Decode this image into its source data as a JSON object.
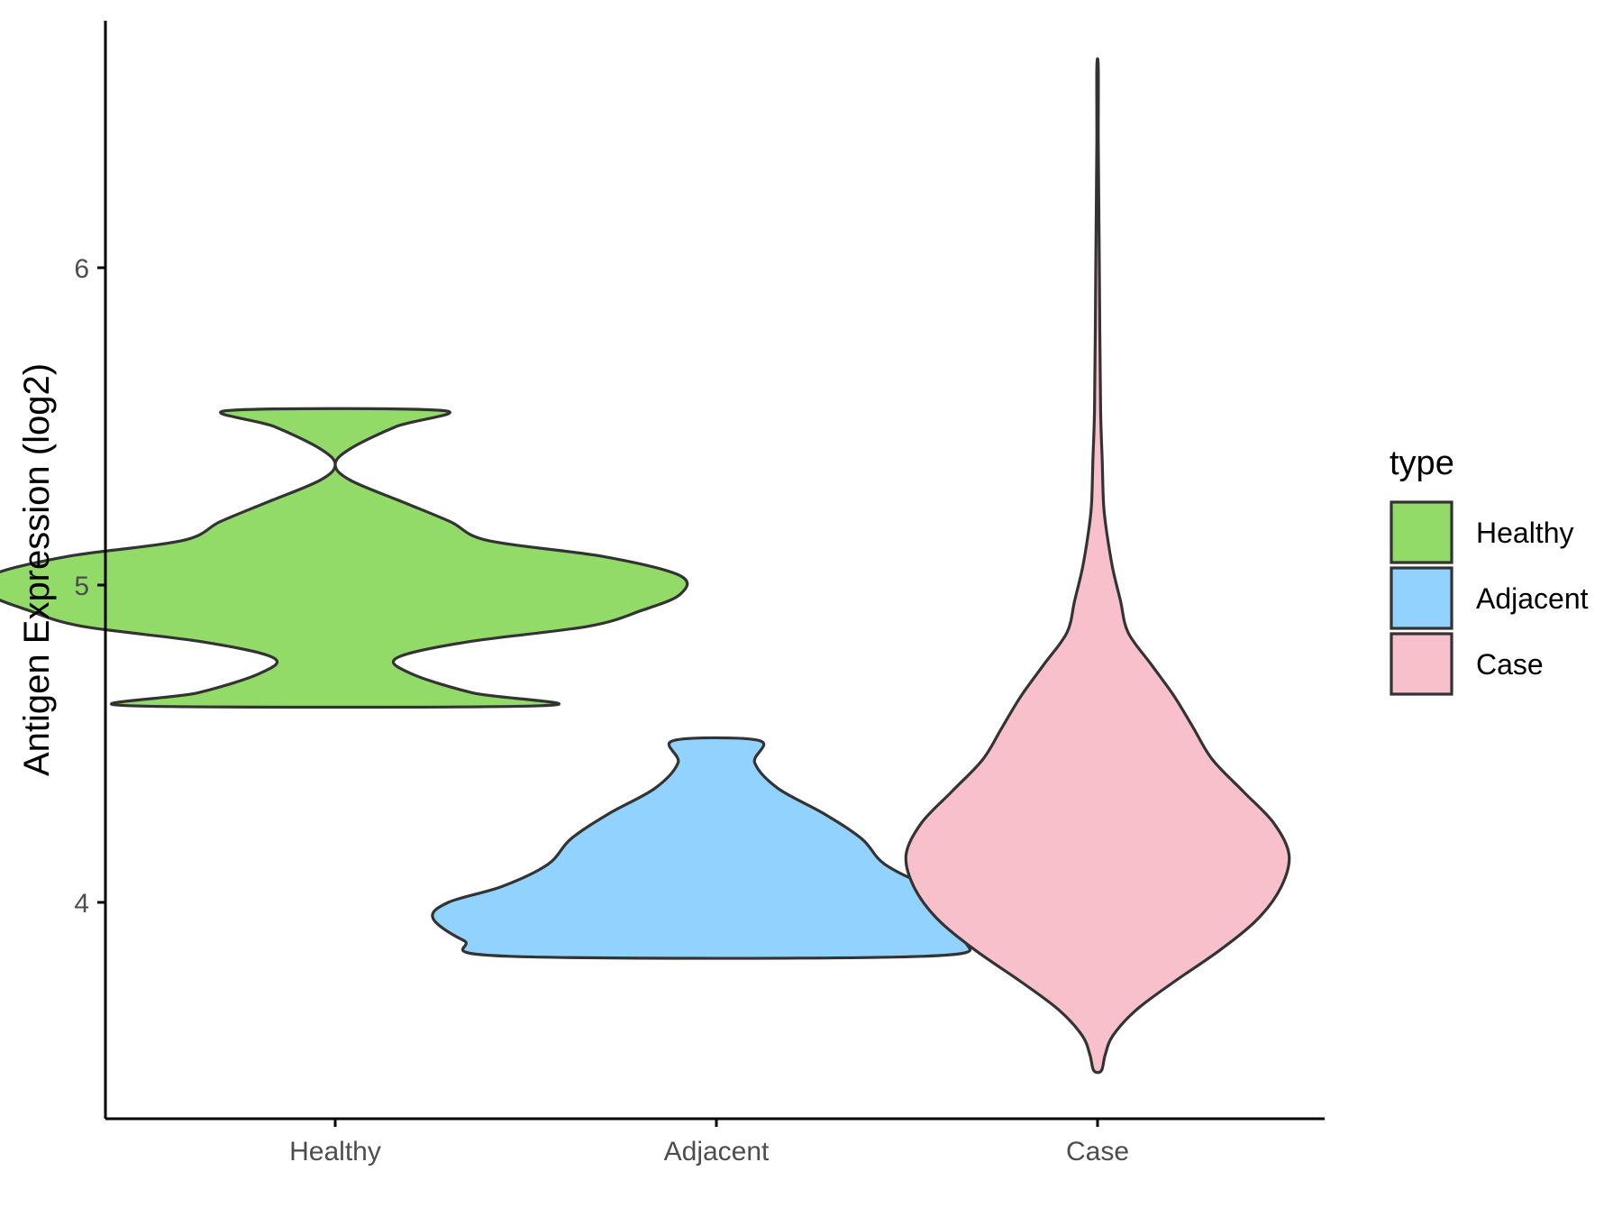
{
  "chart_data": {
    "type": "violin",
    "title": "",
    "xlabel": "",
    "ylabel": "Antigen Expression (log2)",
    "ylim": [
      3.35,
      6.8
    ],
    "yticks": [
      4,
      5,
      6
    ],
    "categories": [
      "Healthy",
      "Adjacent",
      "Case"
    ],
    "grid": false,
    "legend": {
      "title": "type",
      "position": "right",
      "entries": [
        "Healthy",
        "Adjacent",
        "Case"
      ]
    },
    "series": [
      {
        "name": "Healthy",
        "color": "#93DB69",
        "profile": [
          [
            4.62,
            0.27
          ],
          [
            4.66,
            0.18
          ],
          [
            4.72,
            0.1
          ],
          [
            4.77,
            0.08
          ],
          [
            4.82,
            0.17
          ],
          [
            4.87,
            0.33
          ],
          [
            4.92,
            0.4
          ],
          [
            4.97,
            0.45
          ],
          [
            5.03,
            0.45
          ],
          [
            5.09,
            0.35
          ],
          [
            5.14,
            0.2
          ],
          [
            5.2,
            0.15
          ],
          [
            5.26,
            0.09
          ],
          [
            5.33,
            0.02
          ],
          [
            5.38,
            0.0
          ],
          [
            5.43,
            0.02
          ],
          [
            5.5,
            0.08
          ],
          [
            5.55,
            0.14
          ]
        ]
      },
      {
        "name": "Adjacent",
        "color": "#92D2FF",
        "profile": [
          [
            3.83,
            0.27
          ],
          [
            3.88,
            0.33
          ],
          [
            3.95,
            0.37
          ],
          [
            4.0,
            0.35
          ],
          [
            4.05,
            0.28
          ],
          [
            4.12,
            0.22
          ],
          [
            4.2,
            0.19
          ],
          [
            4.28,
            0.14
          ],
          [
            4.36,
            0.08
          ],
          [
            4.44,
            0.05
          ],
          [
            4.51,
            0.056
          ]
        ]
      },
      {
        "name": "Case",
        "color": "#F7C0CB",
        "profile": [
          [
            3.47,
            0.005
          ],
          [
            3.52,
            0.01
          ],
          [
            3.58,
            0.02
          ],
          [
            3.66,
            0.05
          ],
          [
            3.75,
            0.1
          ],
          [
            3.85,
            0.16
          ],
          [
            3.95,
            0.21
          ],
          [
            4.05,
            0.24
          ],
          [
            4.15,
            0.25
          ],
          [
            4.25,
            0.23
          ],
          [
            4.35,
            0.19
          ],
          [
            4.45,
            0.15
          ],
          [
            4.55,
            0.125
          ],
          [
            4.65,
            0.1
          ],
          [
            4.75,
            0.07
          ],
          [
            4.85,
            0.04
          ],
          [
            4.95,
            0.03
          ],
          [
            5.05,
            0.02
          ],
          [
            5.15,
            0.013
          ],
          [
            5.25,
            0.008
          ],
          [
            5.4,
            0.006
          ],
          [
            5.55,
            0.004
          ],
          [
            5.8,
            0.003
          ],
          [
            6.1,
            0.002
          ],
          [
            6.4,
            0.001
          ],
          [
            6.63,
            0.001
          ]
        ]
      }
    ]
  }
}
